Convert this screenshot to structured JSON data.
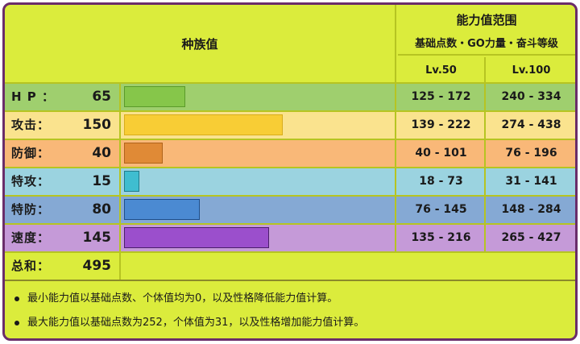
{
  "header": {
    "left_title": "种族值",
    "right_title": "能力值范围",
    "right_subtitle": "基础点数・GO力量・奋斗等级",
    "lv50_label": "Lv.50",
    "lv100_label": "Lv.100"
  },
  "rows": [
    {
      "name": "H P ：",
      "value": "65",
      "lv50": "125 - 172",
      "lv100": "240 - 334",
      "bg": "#9fcf6e",
      "bar": "#86c64a",
      "bar_border": "#5a9a2a",
      "bar_pct": 0.227
    },
    {
      "name": "攻击：",
      "value": "150",
      "lv50": "139 - 222",
      "lv100": "274 - 438",
      "bg": "#fae38e",
      "bar": "#f8cd35",
      "bar_border": "#d8ac1c",
      "bar_pct": 0.585
    },
    {
      "name": "防御：",
      "value": "40",
      "lv50": "40 - 101",
      "lv100": "76 - 196",
      "bg": "#f9b878",
      "bar": "#e08a36",
      "bar_border": "#b0631a",
      "bar_pct": 0.142
    },
    {
      "name": "特攻：",
      "value": "15",
      "lv50": "18 - 73",
      "lv100": "31 - 141",
      "bg": "#9bd3e0",
      "bar": "#3fbdd0",
      "bar_border": "#217a8a",
      "bar_pct": 0.057
    },
    {
      "name": "特防：",
      "value": "80",
      "lv50": "76 - 145",
      "lv100": "148 - 284",
      "bg": "#85a9d4",
      "bar": "#4b8ad2",
      "bar_border": "#1f4f8a",
      "bar_pct": 0.28
    },
    {
      "name": "速度：",
      "value": "145",
      "lv50": "135 - 216",
      "lv100": "265 - 427",
      "bg": "#c59ad8",
      "bar": "#9b4fcc",
      "bar_border": "#4a1f6a",
      "bar_pct": 0.535
    }
  ],
  "total": {
    "name": "总和：",
    "value": "495"
  },
  "notes": [
    "最小能力值以基础点数、个体值均为0，以及性格降低能力值计算。",
    "最大能力值以基础点数为252，个体值为31，以及性格增加能力值计算。"
  ],
  "colors": {
    "frame_border": "#6a2d6a",
    "background": "#dbec3c",
    "grid_line": "#b6c422"
  },
  "chart_data": {
    "type": "bar",
    "title": "种族值",
    "categories": [
      "HP",
      "攻击",
      "防御",
      "特攻",
      "特防",
      "速度"
    ],
    "values": [
      65,
      150,
      40,
      15,
      80,
      145
    ],
    "total": 495,
    "ranges": {
      "Lv.50": [
        "125 - 172",
        "139 - 222",
        "40 - 101",
        "18 - 73",
        "76 - 145",
        "135 - 216"
      ],
      "Lv.100": [
        "240 - 334",
        "274 - 438",
        "76 - 196",
        "31 - 141",
        "148 - 284",
        "265 - 427"
      ]
    }
  }
}
